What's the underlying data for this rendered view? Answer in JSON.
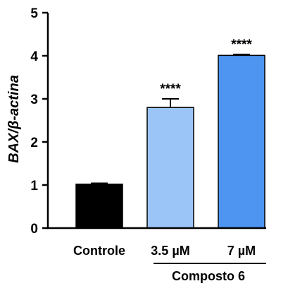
{
  "chart_data": {
    "type": "bar",
    "ylabel": "BAX/β-actina",
    "ylim": [
      0,
      5
    ],
    "yticks": [
      "0",
      "1",
      "2",
      "3",
      "4",
      "5"
    ],
    "categories": [
      "Controle",
      "3.5 µM",
      "7 µM"
    ],
    "values": [
      1.02,
      2.8,
      4.01
    ],
    "errors": [
      0.02,
      0.2,
      0.02
    ],
    "significance": [
      "",
      "****",
      "****"
    ],
    "bar_colors": [
      "#000000",
      "#9cc5f7",
      "#4d95f0"
    ],
    "group_label": "Composto 6",
    "grid": false
  }
}
